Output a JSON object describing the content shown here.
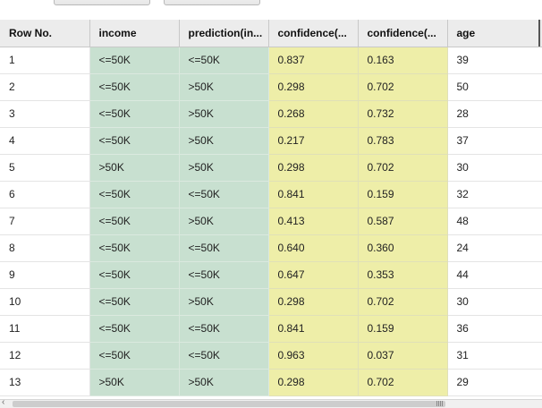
{
  "table": {
    "columns": [
      {
        "label": "Row No.",
        "kind": "id"
      },
      {
        "label": "income",
        "kind": "label"
      },
      {
        "label": "prediction(in...",
        "kind": "prediction"
      },
      {
        "label": "confidence(...",
        "kind": "confidence"
      },
      {
        "label": "confidence(...",
        "kind": "confidence"
      },
      {
        "label": "age",
        "kind": "attribute"
      }
    ],
    "rows": [
      [
        "1",
        "<=50K",
        "<=50K",
        "0.837",
        "0.163",
        "39"
      ],
      [
        "2",
        "<=50K",
        ">50K",
        "0.298",
        "0.702",
        "50"
      ],
      [
        "3",
        "<=50K",
        ">50K",
        "0.268",
        "0.732",
        "28"
      ],
      [
        "4",
        "<=50K",
        ">50K",
        "0.217",
        "0.783",
        "37"
      ],
      [
        "5",
        ">50K",
        ">50K",
        "0.298",
        "0.702",
        "30"
      ],
      [
        "6",
        "<=50K",
        "<=50K",
        "0.841",
        "0.159",
        "32"
      ],
      [
        "7",
        "<=50K",
        ">50K",
        "0.413",
        "0.587",
        "48"
      ],
      [
        "8",
        "<=50K",
        "<=50K",
        "0.640",
        "0.360",
        "24"
      ],
      [
        "9",
        "<=50K",
        "<=50K",
        "0.647",
        "0.353",
        "44"
      ],
      [
        "10",
        "<=50K",
        ">50K",
        "0.298",
        "0.702",
        "30"
      ],
      [
        "11",
        "<=50K",
        "<=50K",
        "0.841",
        "0.159",
        "36"
      ],
      [
        "12",
        "<=50K",
        "<=50K",
        "0.963",
        "0.037",
        "31"
      ],
      [
        "13",
        ">50K",
        ">50K",
        "0.298",
        "0.702",
        "29"
      ]
    ]
  },
  "colors": {
    "label_column": "#c8e0d0",
    "confidence_column": "#eeeea8",
    "header": "#ececec"
  },
  "icons": {
    "scroll_left": "scroll-left-arrow-icon"
  }
}
